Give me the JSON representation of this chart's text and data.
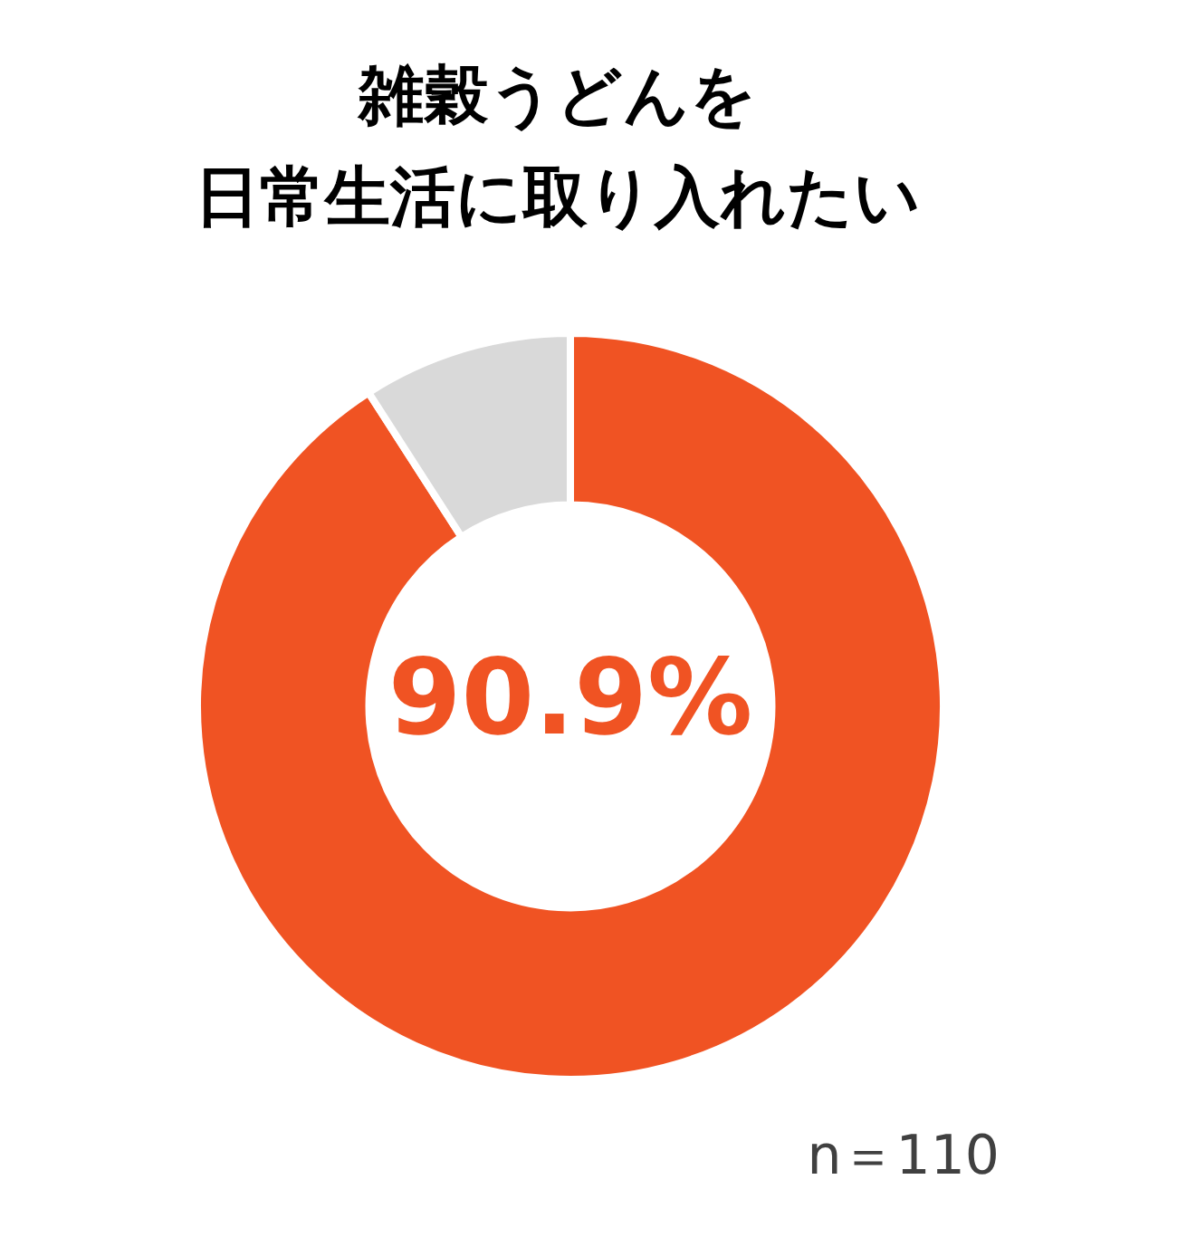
{
  "chart_data": {
    "type": "donut",
    "title": "雑穀うどんを",
    "subtitle": "日常生活に取り入れたい",
    "categories": [
      null,
      null
    ],
    "values": [
      90.9,
      9.1
    ],
    "colors": [
      "#f05323",
      "#d9d9d9"
    ],
    "value_labels": [
      "90.9%",
      null
    ],
    "legend": false,
    "annotations": [
      "n＝110"
    ]
  }
}
